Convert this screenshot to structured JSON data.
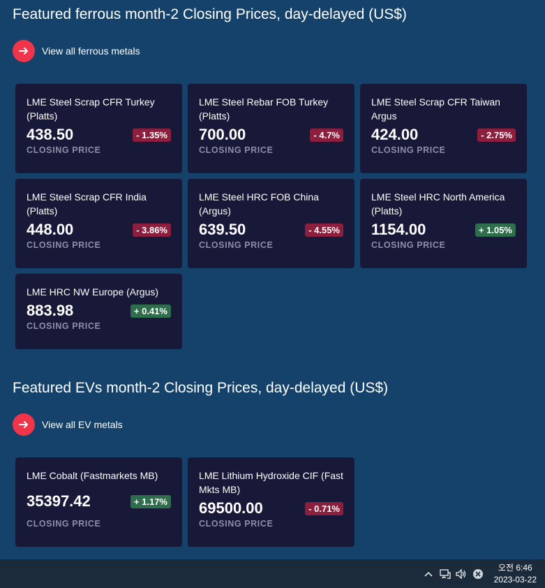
{
  "ferrous": {
    "title": "Featured ferrous month-2 Closing Prices, day-delayed (US$)",
    "view_all_label": "View all ferrous metals",
    "cards": [
      {
        "name": "LME Steel Scrap CFR Turkey (Platts)",
        "price": "438.50",
        "change": "- 1.35%",
        "direction": "down",
        "price_label": "CLOSING PRICE"
      },
      {
        "name": "LME Steel Rebar FOB Turkey (Platts)",
        "price": "700.00",
        "change": "- 4.7%",
        "direction": "down",
        "price_label": "CLOSING PRICE"
      },
      {
        "name": "LME Steel Scrap CFR Taiwan Argus",
        "price": "424.00",
        "change": "- 2.75%",
        "direction": "down",
        "price_label": "CLOSING PRICE"
      },
      {
        "name": "LME Steel Scrap CFR India (Platts)",
        "price": "448.00",
        "change": "- 3.86%",
        "direction": "down",
        "price_label": "CLOSING PRICE"
      },
      {
        "name": "LME Steel HRC FOB China (Argus)",
        "price": "639.50",
        "change": "- 4.55%",
        "direction": "down",
        "price_label": "CLOSING PRICE"
      },
      {
        "name": "LME Steel HRC North America (Platts)",
        "price": "1154.00",
        "change": "+ 1.05%",
        "direction": "up",
        "price_label": "CLOSING PRICE"
      },
      {
        "name": "LME HRC NW Europe (Argus)",
        "price": "883.98",
        "change": "+ 0.41%",
        "direction": "up",
        "price_label": "CLOSING PRICE"
      }
    ]
  },
  "ev": {
    "title": "Featured EVs month-2 Closing Prices, day-delayed (US$)",
    "view_all_label": "View all EV metals",
    "cards": [
      {
        "name": "LME Cobalt (Fastmarkets MB)",
        "price": "35397.42",
        "change": "+ 1.17%",
        "direction": "up",
        "price_label": "CLOSING PRICE"
      },
      {
        "name": "LME Lithium Hydroxide CIF (Fast Mkts MB)",
        "price": "69500.00",
        "change": "- 0.71%",
        "direction": "down",
        "price_label": "CLOSING PRICE"
      }
    ]
  },
  "taskbar": {
    "time": "오전 6:46",
    "date": "2023-03-22",
    "icons": [
      "chevron-up-icon",
      "network-icon",
      "volume-icon",
      "close-circle-icon"
    ]
  },
  "colors": {
    "background": "#14426a",
    "card": "#181839",
    "accent": "#f0344a",
    "down": "#8c1f3e",
    "up": "#2f6e4c"
  }
}
